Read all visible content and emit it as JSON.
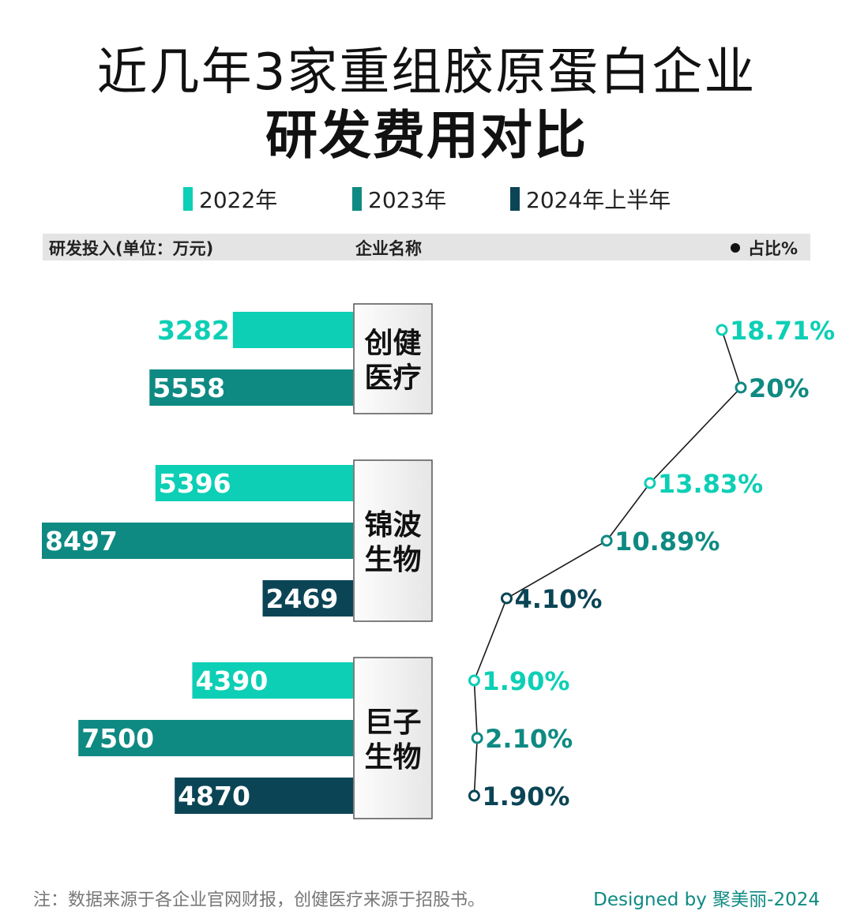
{
  "title_line1": "近几年3家重组胶原蛋白企业",
  "title_line2": "研发费用对比",
  "legend": [
    {
      "label": "2022年",
      "color": "#0ccfb5"
    },
    {
      "label": "2023年",
      "color": "#0e8a82"
    },
    {
      "label": "2024年上半年",
      "color": "#0b4555"
    }
  ],
  "header": {
    "left": "研发投入(单位：万元)",
    "center": "企业名称",
    "right": "占比%"
  },
  "chart_data": {
    "type": "bar",
    "title": "近几年3家重组胶原蛋白企业研发费用对比",
    "value_label": "研发投入(单位：万元)",
    "category_label": "企业名称",
    "ratio_label": "占比%",
    "series_names": [
      "2022年",
      "2023年",
      "2024年上半年"
    ],
    "groups": [
      {
        "company": "创健医疗",
        "company_lines": [
          "创健",
          "医疗"
        ],
        "bars": [
          {
            "period": "2022年",
            "value": 3282,
            "ratio": "18.71%",
            "ratio_value": 18.71
          },
          {
            "period": "2023年",
            "value": 5558,
            "ratio": "20%",
            "ratio_value": 20
          }
        ]
      },
      {
        "company": "锦波生物",
        "company_lines": [
          "锦波",
          "生物"
        ],
        "bars": [
          {
            "period": "2022年",
            "value": 5396,
            "ratio": "13.83%",
            "ratio_value": 13.83
          },
          {
            "period": "2023年",
            "value": 8497,
            "ratio": "10.89%",
            "ratio_value": 10.89
          },
          {
            "period": "2024年上半年",
            "value": 2469,
            "ratio": "4.10%",
            "ratio_value": 4.1
          }
        ]
      },
      {
        "company": "巨子生物",
        "company_lines": [
          "巨子",
          "生物"
        ],
        "bars": [
          {
            "period": "2022年",
            "value": 4390,
            "ratio": "1.90%",
            "ratio_value": 1.9
          },
          {
            "period": "2023年",
            "value": 7500,
            "ratio": "2.10%",
            "ratio_value": 2.1
          },
          {
            "period": "2024年上半年",
            "value": 4870,
            "ratio": "1.90%",
            "ratio_value": 1.9
          }
        ]
      }
    ],
    "value_max": 8497,
    "ratio_max": 20,
    "colors": {
      "2022年": "#0ccfb5",
      "2023年": "#0e8a82",
      "2024年上半年": "#0b4555"
    }
  },
  "footer": {
    "note": "注：数据来源于各企业官网财报，创健医疗来源于招股书。",
    "credit": "Designed by 聚美丽-2024"
  }
}
